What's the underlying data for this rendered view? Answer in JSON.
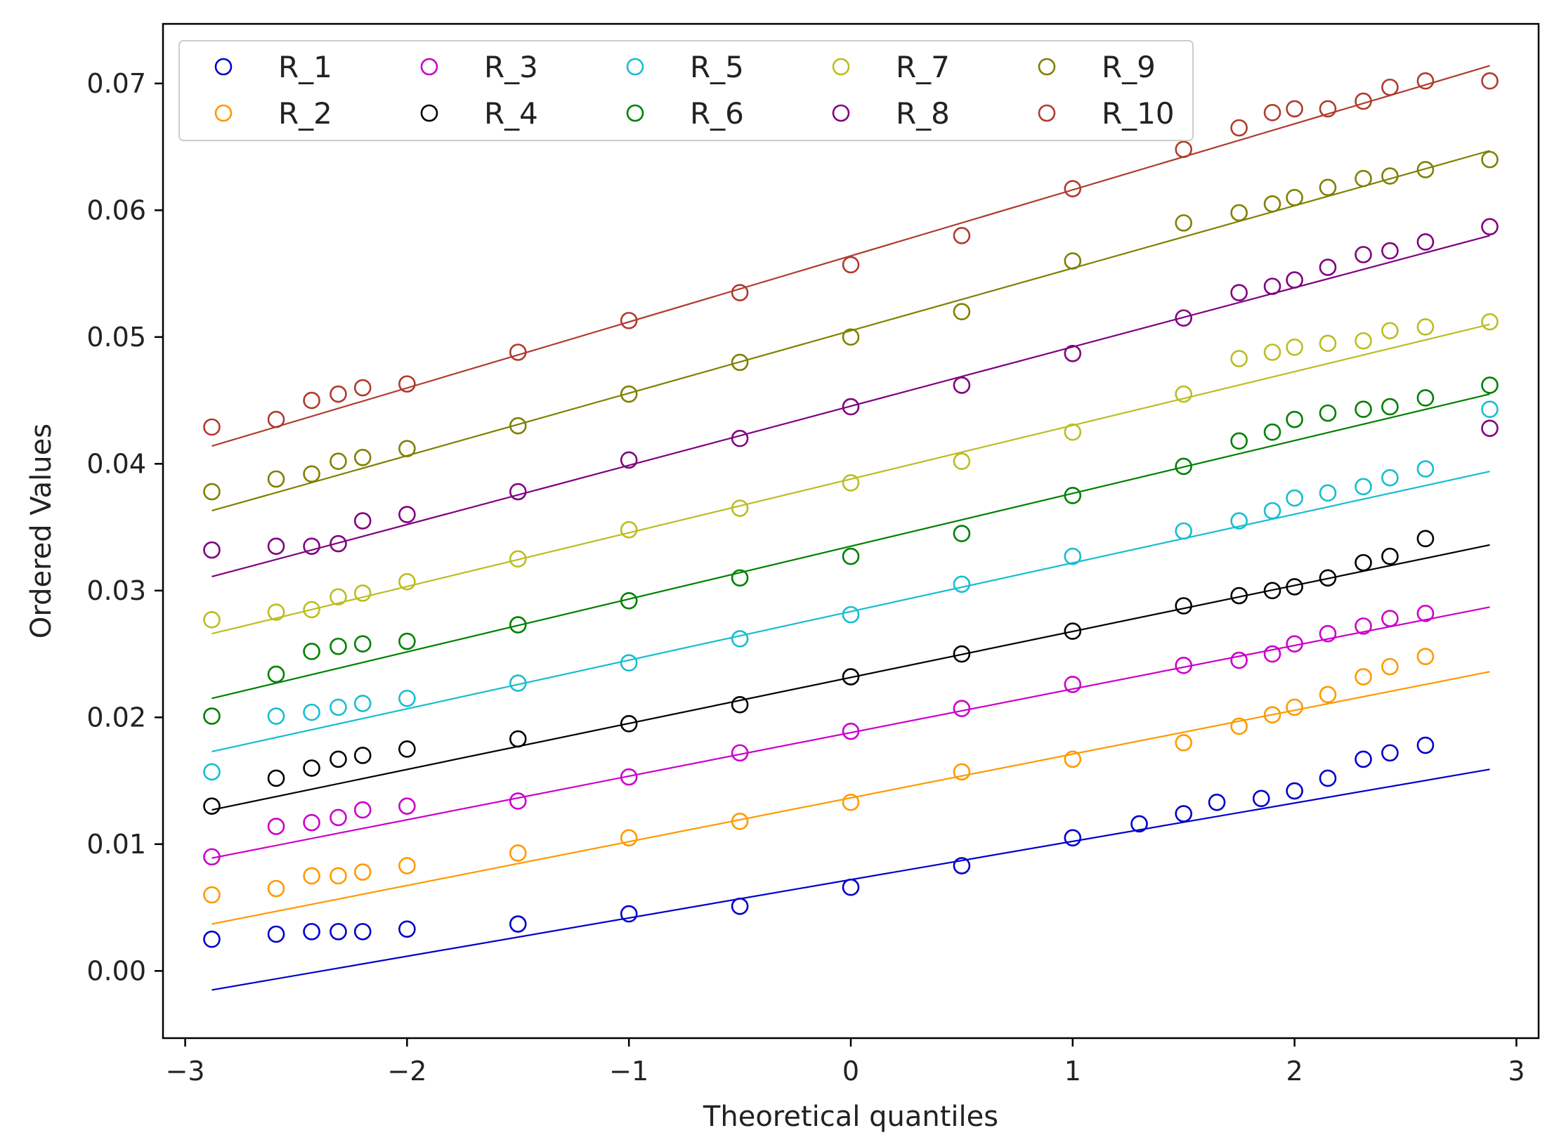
{
  "chart_data": {
    "type": "scatter",
    "title": "",
    "xlabel": "Theoretical quantiles",
    "ylabel": "Ordered Values",
    "xlim": [
      -3.1,
      3.1
    ],
    "ylim": [
      -0.0053,
      0.0747
    ],
    "x_ticks": [
      -3,
      -2,
      -1,
      0,
      1,
      2,
      3
    ],
    "x_tick_labels": [
      "−3",
      "−2",
      "−1",
      "0",
      "1",
      "2",
      "3"
    ],
    "y_ticks": [
      0.0,
      0.01,
      0.02,
      0.03,
      0.04,
      0.05,
      0.06,
      0.07
    ],
    "y_tick_labels": [
      "0.00",
      "0.01",
      "0.02",
      "0.03",
      "0.04",
      "0.05",
      "0.06",
      "0.07"
    ],
    "grid": false,
    "legend_position": "top-left",
    "series": [
      {
        "name": "R_1",
        "color": "#0000cc",
        "points": [
          [
            -2.88,
            0.0025
          ],
          [
            -2.59,
            0.0029
          ],
          [
            -2.43,
            0.0031
          ],
          [
            -2.31,
            0.0031
          ],
          [
            -2.2,
            0.0031
          ],
          [
            -2.0,
            0.0033
          ],
          [
            -1.5,
            0.0037
          ],
          [
            -1.0,
            0.0045
          ],
          [
            -0.5,
            0.0051
          ],
          [
            0.0,
            0.0066
          ],
          [
            0.5,
            0.0083
          ],
          [
            1.0,
            0.0105
          ],
          [
            1.3,
            0.0116
          ],
          [
            1.5,
            0.0124
          ],
          [
            1.65,
            0.0133
          ],
          [
            1.85,
            0.0136
          ],
          [
            2.0,
            0.0142
          ],
          [
            2.15,
            0.0152
          ],
          [
            2.31,
            0.0167
          ],
          [
            2.43,
            0.0172
          ],
          [
            2.59,
            0.0178
          ]
        ],
        "line": [
          [
            -2.88,
            -0.0015
          ],
          [
            2.88,
            0.0159
          ]
        ]
      },
      {
        "name": "R_2",
        "color": "#ff9900",
        "points": [
          [
            -2.88,
            0.006
          ],
          [
            -2.59,
            0.0065
          ],
          [
            -2.43,
            0.0075
          ],
          [
            -2.31,
            0.0075
          ],
          [
            -2.2,
            0.0078
          ],
          [
            -2.0,
            0.0083
          ],
          [
            -1.5,
            0.0093
          ],
          [
            -1.0,
            0.0105
          ],
          [
            -0.5,
            0.0118
          ],
          [
            0.0,
            0.0133
          ],
          [
            0.5,
            0.0157
          ],
          [
            1.0,
            0.0167
          ],
          [
            1.5,
            0.018
          ],
          [
            1.75,
            0.0193
          ],
          [
            1.9,
            0.0202
          ],
          [
            2.0,
            0.0208
          ],
          [
            2.15,
            0.0218
          ],
          [
            2.31,
            0.0232
          ],
          [
            2.43,
            0.024
          ],
          [
            2.59,
            0.0248
          ]
        ],
        "line": [
          [
            -2.88,
            0.0037
          ],
          [
            2.88,
            0.0236
          ]
        ]
      },
      {
        "name": "R_3",
        "color": "#cc00cc",
        "points": [
          [
            -2.88,
            0.009
          ],
          [
            -2.59,
            0.0114
          ],
          [
            -2.43,
            0.0117
          ],
          [
            -2.31,
            0.0121
          ],
          [
            -2.2,
            0.0127
          ],
          [
            -2.0,
            0.013
          ],
          [
            -1.5,
            0.0134
          ],
          [
            -1.0,
            0.0153
          ],
          [
            -0.5,
            0.0172
          ],
          [
            0.0,
            0.0189
          ],
          [
            0.5,
            0.0207
          ],
          [
            1.0,
            0.0226
          ],
          [
            1.5,
            0.0241
          ],
          [
            1.75,
            0.0245
          ],
          [
            1.9,
            0.025
          ],
          [
            2.0,
            0.0258
          ],
          [
            2.15,
            0.0266
          ],
          [
            2.31,
            0.0272
          ],
          [
            2.43,
            0.0278
          ],
          [
            2.59,
            0.0282
          ]
        ],
        "line": [
          [
            -2.88,
            0.0089
          ],
          [
            2.88,
            0.0287
          ]
        ]
      },
      {
        "name": "R_4",
        "color": "#000000",
        "points": [
          [
            -2.88,
            0.013
          ],
          [
            -2.59,
            0.0152
          ],
          [
            -2.43,
            0.016
          ],
          [
            -2.31,
            0.0167
          ],
          [
            -2.2,
            0.017
          ],
          [
            -2.0,
            0.0175
          ],
          [
            -1.5,
            0.0183
          ],
          [
            -1.0,
            0.0195
          ],
          [
            -0.5,
            0.021
          ],
          [
            0.0,
            0.0232
          ],
          [
            0.5,
            0.025
          ],
          [
            1.0,
            0.0268
          ],
          [
            1.5,
            0.0288
          ],
          [
            1.75,
            0.0296
          ],
          [
            1.9,
            0.03
          ],
          [
            2.0,
            0.0303
          ],
          [
            2.15,
            0.031
          ],
          [
            2.31,
            0.0322
          ],
          [
            2.43,
            0.0327
          ],
          [
            2.59,
            0.0341
          ]
        ],
        "line": [
          [
            -2.88,
            0.0127
          ],
          [
            2.88,
            0.0336
          ]
        ]
      },
      {
        "name": "R_5",
        "color": "#17becf",
        "points": [
          [
            -2.88,
            0.0157
          ],
          [
            -2.59,
            0.0201
          ],
          [
            -2.43,
            0.0204
          ],
          [
            -2.31,
            0.0208
          ],
          [
            -2.2,
            0.0211
          ],
          [
            -2.0,
            0.0215
          ],
          [
            -1.5,
            0.0227
          ],
          [
            -1.0,
            0.0243
          ],
          [
            -0.5,
            0.0262
          ],
          [
            0.0,
            0.0281
          ],
          [
            0.5,
            0.0305
          ],
          [
            1.0,
            0.0327
          ],
          [
            1.5,
            0.0347
          ],
          [
            1.75,
            0.0355
          ],
          [
            1.9,
            0.0363
          ],
          [
            2.0,
            0.0373
          ],
          [
            2.15,
            0.0377
          ],
          [
            2.31,
            0.0382
          ],
          [
            2.43,
            0.0389
          ],
          [
            2.59,
            0.0396
          ],
          [
            2.88,
            0.0443
          ]
        ],
        "line": [
          [
            -2.88,
            0.0173
          ],
          [
            2.88,
            0.0394
          ]
        ]
      },
      {
        "name": "R_6",
        "color": "#008000",
        "points": [
          [
            -2.88,
            0.0201
          ],
          [
            -2.59,
            0.0234
          ],
          [
            -2.43,
            0.0252
          ],
          [
            -2.31,
            0.0256
          ],
          [
            -2.2,
            0.0258
          ],
          [
            -2.0,
            0.026
          ],
          [
            -1.5,
            0.0273
          ],
          [
            -1.0,
            0.0292
          ],
          [
            -0.5,
            0.031
          ],
          [
            0.0,
            0.0327
          ],
          [
            0.5,
            0.0345
          ],
          [
            1.0,
            0.0375
          ],
          [
            1.5,
            0.0398
          ],
          [
            1.75,
            0.0418
          ],
          [
            1.9,
            0.0425
          ],
          [
            2.0,
            0.0435
          ],
          [
            2.15,
            0.044
          ],
          [
            2.31,
            0.0443
          ],
          [
            2.43,
            0.0445
          ],
          [
            2.59,
            0.0452
          ],
          [
            2.88,
            0.0462
          ]
        ],
        "line": [
          [
            -2.88,
            0.0215
          ],
          [
            2.88,
            0.0455
          ]
        ]
      },
      {
        "name": "R_7",
        "color": "#bcbd22",
        "points": [
          [
            -2.88,
            0.0277
          ],
          [
            -2.59,
            0.0283
          ],
          [
            -2.43,
            0.0285
          ],
          [
            -2.31,
            0.0295
          ],
          [
            -2.2,
            0.0298
          ],
          [
            -2.0,
            0.0307
          ],
          [
            -1.5,
            0.0325
          ],
          [
            -1.0,
            0.0348
          ],
          [
            -0.5,
            0.0365
          ],
          [
            0.0,
            0.0385
          ],
          [
            0.5,
            0.0402
          ],
          [
            1.0,
            0.0425
          ],
          [
            1.5,
            0.0455
          ],
          [
            1.75,
            0.0483
          ],
          [
            1.9,
            0.0488
          ],
          [
            2.0,
            0.0492
          ],
          [
            2.15,
            0.0495
          ],
          [
            2.31,
            0.0497
          ],
          [
            2.43,
            0.0505
          ],
          [
            2.59,
            0.0508
          ],
          [
            2.88,
            0.0512
          ]
        ],
        "line": [
          [
            -2.88,
            0.0266
          ],
          [
            2.88,
            0.051
          ]
        ]
      },
      {
        "name": "R_8",
        "color": "#800080",
        "points": [
          [
            -2.88,
            0.0332
          ],
          [
            -2.59,
            0.0335
          ],
          [
            -2.43,
            0.0335
          ],
          [
            -2.31,
            0.0337
          ],
          [
            -2.2,
            0.0355
          ],
          [
            -2.0,
            0.036
          ],
          [
            -1.5,
            0.0378
          ],
          [
            -1.0,
            0.0403
          ],
          [
            -0.5,
            0.042
          ],
          [
            0.0,
            0.0445
          ],
          [
            0.5,
            0.0462
          ],
          [
            1.0,
            0.0487
          ],
          [
            1.5,
            0.0515
          ],
          [
            1.75,
            0.0535
          ],
          [
            1.9,
            0.054
          ],
          [
            2.0,
            0.0545
          ],
          [
            2.15,
            0.0555
          ],
          [
            2.31,
            0.0565
          ],
          [
            2.43,
            0.0568
          ],
          [
            2.59,
            0.0575
          ],
          [
            2.88,
            0.0587
          ],
          [
            2.88,
            0.0428
          ]
        ],
        "line": [
          [
            -2.88,
            0.0311
          ],
          [
            2.88,
            0.058
          ]
        ]
      },
      {
        "name": "R_9",
        "color": "#808000",
        "points": [
          [
            -2.88,
            0.0378
          ],
          [
            -2.59,
            0.0388
          ],
          [
            -2.43,
            0.0392
          ],
          [
            -2.31,
            0.0402
          ],
          [
            -2.2,
            0.0405
          ],
          [
            -2.0,
            0.0412
          ],
          [
            -1.5,
            0.043
          ],
          [
            -1.0,
            0.0455
          ],
          [
            -0.5,
            0.048
          ],
          [
            0.0,
            0.05
          ],
          [
            0.5,
            0.052
          ],
          [
            1.0,
            0.056
          ],
          [
            1.5,
            0.059
          ],
          [
            1.75,
            0.0598
          ],
          [
            1.9,
            0.0605
          ],
          [
            2.0,
            0.061
          ],
          [
            2.15,
            0.0618
          ],
          [
            2.31,
            0.0625
          ],
          [
            2.43,
            0.0627
          ],
          [
            2.59,
            0.0632
          ],
          [
            2.88,
            0.064
          ]
        ],
        "line": [
          [
            -2.88,
            0.0363
          ],
          [
            2.88,
            0.0647
          ]
        ]
      },
      {
        "name": "R_10",
        "color": "#b03a2e",
        "points": [
          [
            -2.88,
            0.0429
          ],
          [
            -2.59,
            0.0435
          ],
          [
            -2.43,
            0.045
          ],
          [
            -2.31,
            0.0455
          ],
          [
            -2.2,
            0.046
          ],
          [
            -2.0,
            0.0463
          ],
          [
            -1.5,
            0.0488
          ],
          [
            -1.0,
            0.0513
          ],
          [
            -0.5,
            0.0535
          ],
          [
            0.0,
            0.0557
          ],
          [
            0.5,
            0.058
          ],
          [
            1.0,
            0.0617
          ],
          [
            1.5,
            0.0648
          ],
          [
            1.75,
            0.0665
          ],
          [
            1.9,
            0.0677
          ],
          [
            2.0,
            0.068
          ],
          [
            2.15,
            0.068
          ],
          [
            2.31,
            0.0686
          ],
          [
            2.43,
            0.0697
          ],
          [
            2.59,
            0.0702
          ],
          [
            2.88,
            0.0702
          ]
        ],
        "line": [
          [
            -2.88,
            0.0414
          ],
          [
            2.88,
            0.0714
          ]
        ]
      }
    ]
  }
}
